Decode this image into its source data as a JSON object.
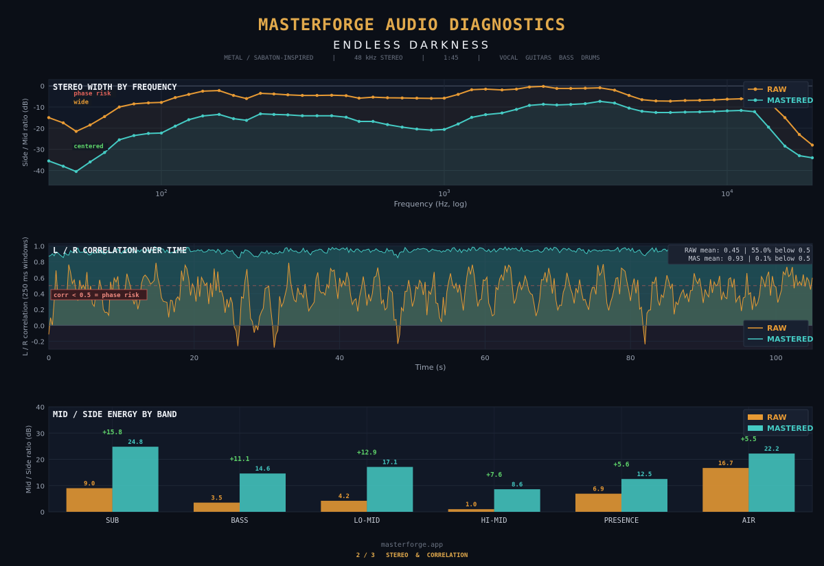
{
  "header": {
    "title": "MASTERFORGE AUDIO DIAGNOSTICS",
    "subtitle": "ENDLESS DARKNESS",
    "meta": "METAL / SABATON-INSPIRED     |     48 kHz STEREO     |     1:45     |     VOCAL  GUITARS  BASS  DRUMS"
  },
  "footer": {
    "site": "masterforge.app",
    "page": "2 / 3   STEREO  &  CORRELATION"
  },
  "colors": {
    "raw": "#e79a34",
    "mastered": "#45cbc4",
    "background": "#0b0f17",
    "panel": "#111826",
    "phase_risk": "#e0625a",
    "delta": "#5fd46a"
  },
  "chart_data": [
    {
      "type": "line",
      "title": "STEREO WIDTH BY FREQUENCY",
      "xlabel": "Frequency (Hz, log)",
      "ylabel": "Side / Mid ratio (dB)",
      "xscale": "log",
      "xlim": [
        40,
        20000
      ],
      "ylim": [
        -47,
        3
      ],
      "x_ticks": [
        {
          "value": 100,
          "base": "10",
          "exp": "2"
        },
        {
          "value": 1000,
          "base": "10",
          "exp": "3"
        },
        {
          "value": 10000,
          "base": "10",
          "exp": "4"
        }
      ],
      "y_ticks": [
        0,
        -10,
        -20,
        -30,
        -40
      ],
      "legend": "top-right",
      "grid": true,
      "annotations": [
        {
          "text": "phase risk",
          "x": 49,
          "y": -4.5,
          "color": "#e0625a"
        },
        {
          "text": "wide",
          "x": 49,
          "y": -8.5,
          "color": "#e79a34"
        },
        {
          "text": "centered",
          "x": 49,
          "y": -29.5,
          "color": "#5fd46a"
        }
      ],
      "x": [
        40,
        45,
        50,
        56,
        63,
        71,
        80,
        90,
        100,
        112,
        125,
        140,
        160,
        180,
        200,
        224,
        250,
        280,
        315,
        355,
        400,
        450,
        500,
        560,
        630,
        710,
        800,
        900,
        1000,
        1120,
        1250,
        1400,
        1600,
        1800,
        2000,
        2240,
        2500,
        2800,
        3150,
        3550,
        4000,
        4500,
        5000,
        5600,
        6300,
        7100,
        8000,
        9000,
        10000,
        11200,
        12500,
        14000,
        16000,
        18000,
        20000
      ],
      "series": [
        {
          "name": "RAW",
          "values": [
            -15,
            -17.5,
            -21.5,
            -18.5,
            -14.5,
            -10,
            -8.5,
            -8,
            -7.8,
            -5.5,
            -4,
            -2.5,
            -2.2,
            -4.5,
            -6,
            -3.5,
            -3.8,
            -4.2,
            -4.5,
            -4.5,
            -4.4,
            -4.6,
            -5.8,
            -5.3,
            -5.6,
            -5.7,
            -5.8,
            -5.9,
            -5.8,
            -4,
            -1.8,
            -1.5,
            -1.9,
            -1.5,
            -0.5,
            -0.2,
            -1.2,
            -1.2,
            -1.1,
            -0.9,
            -2,
            -4.5,
            -6.5,
            -7.1,
            -7.2,
            -6.9,
            -6.8,
            -6.6,
            -6.3,
            -6.1,
            -6.1,
            -7.5,
            -15,
            -23,
            -28
          ]
        },
        {
          "name": "MASTERED",
          "values": [
            -35.5,
            -38,
            -40.5,
            -36,
            -31.5,
            -25.5,
            -23.5,
            -22.5,
            -22.3,
            -19,
            -16,
            -14.2,
            -13.5,
            -15.5,
            -16.3,
            -13.2,
            -13.5,
            -13.7,
            -14.1,
            -14.1,
            -14.1,
            -14.8,
            -16.8,
            -16.8,
            -18.3,
            -19.5,
            -20.4,
            -20.9,
            -20.6,
            -18,
            -14.9,
            -13.6,
            -12.8,
            -11.1,
            -9.2,
            -8.7,
            -9,
            -8.8,
            -8.4,
            -7.3,
            -8.1,
            -10.5,
            -12,
            -12.6,
            -12.6,
            -12.4,
            -12.3,
            -12.1,
            -11.8,
            -11.6,
            -12.2,
            -19.5,
            -28.5,
            -33,
            -34
          ]
        }
      ]
    },
    {
      "type": "line",
      "title": "L / R CORRELATION OVER TIME",
      "xlabel": "Time (s)",
      "ylabel": "L / R correlation (250 ms windows)",
      "xlim": [
        0,
        105
      ],
      "ylim": [
        -0.3,
        1.03
      ],
      "x_ticks": [
        0,
        20,
        40,
        60,
        80,
        100
      ],
      "y_ticks": [
        1.0,
        0.8,
        0.6,
        0.4,
        0.2,
        0.0,
        -0.2
      ],
      "threshold": 0.5,
      "threshold_label": "corr < 0.5  =  phase risk",
      "stats": [
        "RAW mean: 0.45   |   55.0% below 0.5",
        " MAS mean: 0.93   |   0.1% below 0.5"
      ],
      "legend": "bottom-right",
      "grid": true,
      "x": [
        0,
        1,
        2,
        3,
        4,
        5,
        6,
        7,
        8,
        9,
        10,
        11,
        12,
        13,
        14,
        15,
        16,
        17,
        18,
        19,
        20,
        21,
        22,
        23,
        24,
        25,
        26,
        27,
        28,
        29,
        30,
        31,
        32,
        33,
        34,
        35,
        36,
        37,
        38,
        39,
        40,
        41,
        42,
        43,
        44,
        45,
        46,
        47,
        48,
        49,
        50,
        51,
        52,
        53,
        54,
        55,
        56,
        57,
        58,
        59,
        60,
        61,
        62,
        63,
        64,
        65,
        66,
        67,
        68,
        69,
        70,
        71,
        72,
        73,
        74,
        75,
        76,
        77,
        78,
        79,
        80,
        81,
        82,
        83,
        84,
        85,
        86,
        87,
        88,
        89,
        90,
        91,
        92,
        93,
        94,
        95,
        96,
        97,
        98,
        99,
        100,
        101,
        102,
        103,
        104,
        105
      ],
      "series": [
        {
          "name": "RAW",
          "values": [
            -0.25,
            0.55,
            0.35,
            0.7,
            0.45,
            0.62,
            0.3,
            0.5,
            0.2,
            0.55,
            0.4,
            0.6,
            0.3,
            0.5,
            0.45,
            0.68,
            0.25,
            0.15,
            0.48,
            0.7,
            0.35,
            0.55,
            0.38,
            0.6,
            0.25,
            0.45,
            -0.15,
            0.7,
            0.1,
            -0.05,
            0.55,
            -0.2,
            0.4,
            0.62,
            0.3,
            0.5,
            0.1,
            0.55,
            0.3,
            0.65,
            0.45,
            0.6,
            0.2,
            0.5,
            0.35,
            0.7,
            0.15,
            0.55,
            -0.25,
            0.5,
            0.4,
            0.62,
            0.3,
            0.55,
            0.1,
            0.45,
            0.6,
            0.3,
            0.7,
            0.4,
            0.55,
            0.2,
            0.5,
            0.82,
            0.35,
            0.6,
            0.45,
            0.28,
            0.5,
            0.65,
            0.3,
            0.55,
            0.4,
            0.6,
            0.25,
            0.5,
            0.7,
            0.35,
            0.45,
            0.6,
            0.3,
            0.55,
            -0.15,
            0.5,
            0.4,
            0.65,
            0.3,
            0.55,
            0.45,
            0.6,
            0.35,
            0.5,
            0.55,
            0.4,
            0.6,
            0.3,
            0.5,
            0.2,
            0.45,
            0.6,
            0.35,
            0.55,
            0.7,
            0.5,
            0.65,
            0.6
          ]
        },
        {
          "name": "MASTERED",
          "values": [
            0.85,
            0.9,
            0.88,
            0.92,
            0.95,
            0.93,
            0.9,
            0.94,
            0.91,
            0.95,
            0.93,
            0.96,
            0.92,
            0.94,
            0.95,
            0.97,
            0.93,
            0.9,
            0.94,
            0.96,
            0.92,
            0.95,
            0.93,
            0.94,
            0.92,
            0.95,
            0.85,
            0.94,
            0.9,
            0.88,
            0.95,
            0.87,
            0.93,
            0.96,
            0.92,
            0.95,
            0.9,
            0.95,
            0.93,
            0.96,
            0.94,
            0.95,
            0.93,
            0.95,
            0.94,
            0.96,
            0.93,
            0.95,
            0.88,
            0.95,
            0.94,
            0.96,
            0.93,
            0.95,
            0.92,
            0.94,
            0.96,
            0.93,
            0.97,
            0.95,
            0.96,
            0.94,
            0.95,
            0.97,
            0.94,
            0.96,
            0.95,
            0.93,
            0.95,
            0.97,
            0.94,
            0.95,
            0.94,
            0.96,
            0.93,
            0.95,
            0.96,
            0.94,
            0.95,
            0.96,
            0.94,
            0.95,
            0.9,
            0.95,
            0.94,
            0.96,
            0.94,
            0.95,
            0.94,
            0.96,
            0.94,
            0.95,
            0.95,
            0.94,
            0.96,
            0.93,
            0.95,
            0.92,
            0.94,
            0.96,
            0.94,
            0.95,
            0.96,
            0.95,
            0.96,
            0.95
          ]
        }
      ]
    },
    {
      "type": "bar",
      "title": "MID / SIDE ENERGY BY BAND",
      "xlabel": "",
      "ylabel": "Mid / Side ratio (dB)",
      "ylim": [
        0,
        40
      ],
      "y_ticks": [
        0,
        10,
        20,
        30,
        40
      ],
      "legend": "top-right",
      "grid": true,
      "categories": [
        "SUB",
        "BASS",
        "LO-MID",
        "HI-MID",
        "PRESENCE",
        "AIR"
      ],
      "series": [
        {
          "name": "RAW",
          "values": [
            9.0,
            3.5,
            4.2,
            1.0,
            6.9,
            16.7
          ],
          "labels": [
            "9.0",
            "3.5",
            "4.2",
            "1.0",
            "6.9",
            "16.7"
          ]
        },
        {
          "name": "MASTERED",
          "values": [
            24.8,
            14.6,
            17.1,
            8.6,
            12.5,
            22.2
          ],
          "labels": [
            "24.8",
            "14.6",
            "17.1",
            "8.6",
            "12.5",
            "22.2"
          ]
        }
      ],
      "deltas": [
        "+15.8",
        "+11.1",
        "+12.9",
        "+7.6",
        "+5.6",
        "+5.5"
      ]
    }
  ]
}
